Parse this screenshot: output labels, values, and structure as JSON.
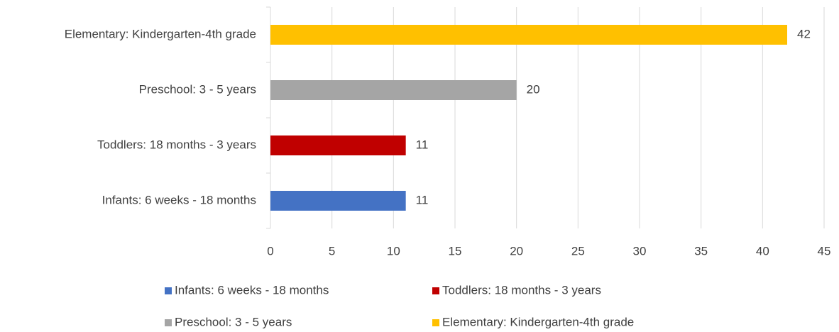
{
  "chart_data": {
    "type": "bar",
    "orientation": "horizontal",
    "categories": [
      "Infants: 6 weeks - 18 months",
      "Toddlers: 18 months - 3 years",
      "Preschool: 3 - 5 years",
      "Elementary: Kindergarten-4th grade"
    ],
    "values": [
      11,
      11,
      20,
      42
    ],
    "colors": [
      "#4472c4",
      "#c00000",
      "#a5a5a5",
      "#ffc000"
    ],
    "xlim": [
      0,
      45
    ],
    "xticks": [
      0,
      5,
      10,
      15,
      20,
      25,
      30,
      35,
      40,
      45
    ],
    "grid": true,
    "legend": "bottom"
  }
}
